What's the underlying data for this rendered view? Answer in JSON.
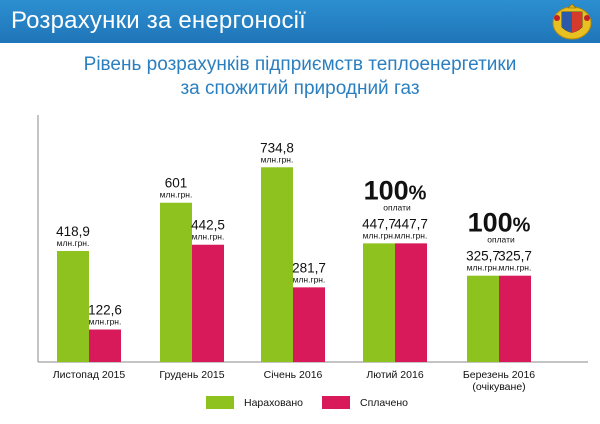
{
  "header": {
    "title": "Розрахунки за енергоносії"
  },
  "colors": {
    "accrued": "#8dc21f",
    "paid": "#d91a5a",
    "header": "#2380c4",
    "axis": "#888888"
  },
  "chart_data": {
    "type": "bar",
    "title": "Рівень розрахунків підприємств теплоенергетики",
    "subtitle": "за спожитий природний газ",
    "categories": [
      "Листопад 2015",
      "Грудень 2015",
      "Січень 2016",
      "Лютий 2016",
      "Березень 2016"
    ],
    "category_notes": [
      "",
      "",
      "",
      "",
      "(очікуване)"
    ],
    "series": [
      {
        "name": "Нараховано",
        "values": [
          418.9,
          601,
          734.8,
          447.7,
          325.7
        ],
        "labels": [
          "418,9",
          "601",
          "734,8",
          "447,7",
          "325,7"
        ]
      },
      {
        "name": "Сплачено",
        "values": [
          122.6,
          442.5,
          281.7,
          447.7,
          325.7
        ],
        "labels": [
          "122,6",
          "442,5",
          "281,7",
          "447,7",
          "325,7"
        ]
      }
    ],
    "unit_label": "млн.грн.",
    "annotations": [
      {
        "category": "Лютий 2016",
        "big": "100",
        "pct": "%",
        "text": "оплати"
      },
      {
        "category": "Березень 2016",
        "big": "100",
        "pct": "%",
        "text": "оплати"
      }
    ],
    "ylim": [
      0,
      900
    ],
    "grid": false,
    "legend": "bottom"
  }
}
